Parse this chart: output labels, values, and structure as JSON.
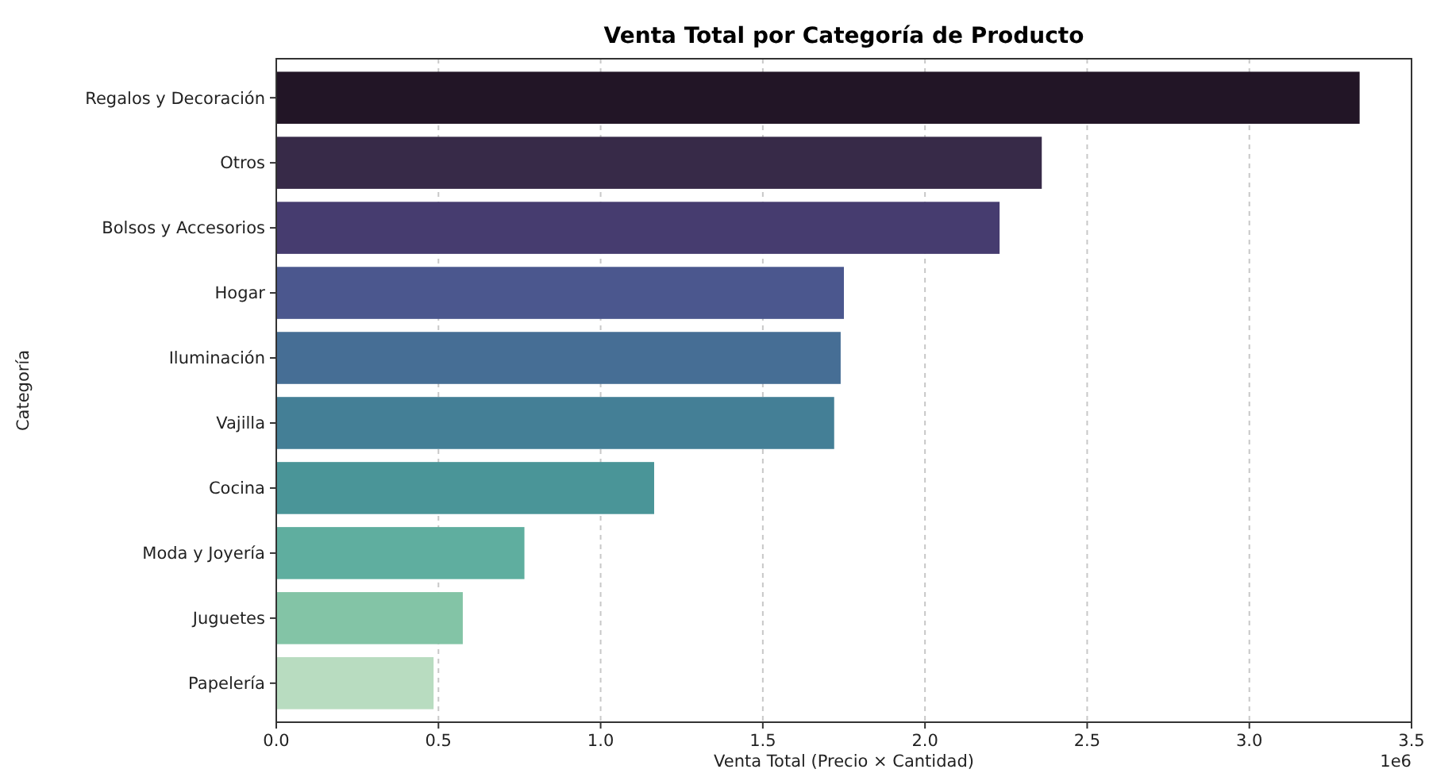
{
  "chart_data": {
    "type": "bar",
    "orientation": "horizontal",
    "title": "Venta Total por Categoría de Producto",
    "xlabel": "Venta Total (Precio × Cantidad)",
    "ylabel": "Categoría",
    "categories": [
      "Regalos y Decoración",
      "Otros",
      "Bolsos y Accesorios",
      "Hogar",
      "Iluminación",
      "Vajilla",
      "Cocina",
      "Moda y Joyería",
      "Juguetes",
      "Papelería"
    ],
    "values": [
      3.34,
      2.36,
      2.23,
      1.75,
      1.74,
      1.72,
      1.165,
      0.765,
      0.575,
      0.485
    ],
    "colors": [
      "#221526",
      "#372a48",
      "#463c6f",
      "#4b578e",
      "#466e95",
      "#447f96",
      "#4a9598",
      "#5fae9f",
      "#83c4a6",
      "#b8dcc0"
    ],
    "xlim": [
      0,
      3.5
    ],
    "xticks": [
      {
        "value": 0,
        "label": "0.0"
      },
      {
        "value": 0.5,
        "label": "0.5"
      },
      {
        "value": 1,
        "label": "1.0"
      },
      {
        "value": 1.5,
        "label": "1.5"
      },
      {
        "value": 2,
        "label": "2.0"
      },
      {
        "value": 2.5,
        "label": "2.5"
      },
      {
        "value": 3,
        "label": "3.0"
      },
      {
        "value": 3.5,
        "label": "3.5"
      }
    ],
    "grid": "x",
    "line_style": "dashed",
    "annotations": [
      "1e6"
    ]
  }
}
